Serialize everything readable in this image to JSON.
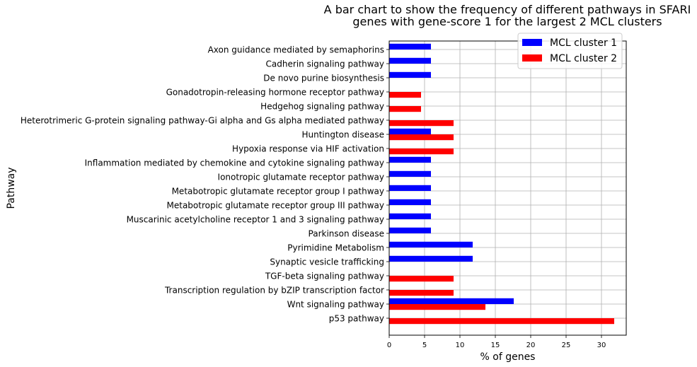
{
  "chart_data": {
    "type": "bar",
    "orientation": "horizontal",
    "title": "A bar chart to show the frequency of different pathways in SFARI\ngenes with gene-score 1 for the largest 2 MCL clusters",
    "xlabel": "% of genes",
    "ylabel": "Pathway",
    "xlim": [
      0,
      33.5
    ],
    "xticks": [
      0,
      5,
      10,
      15,
      20,
      25,
      30
    ],
    "grid": true,
    "legend_position": "top-right",
    "categories": [
      "Axon guidance mediated by semaphorins",
      "Cadherin signaling pathway",
      "De novo purine biosynthesis",
      "Gonadotropin-releasing hormone receptor pathway",
      "Hedgehog signaling pathway",
      "Heterotrimeric G-protein signaling pathway-Gi alpha and Gs alpha mediated pathway",
      "Huntington disease",
      "Hypoxia response via HIF activation",
      "Inflammation mediated by chemokine and cytokine signaling pathway",
      "Ionotropic glutamate receptor pathway",
      "Metabotropic glutamate receptor group I pathway",
      "Metabotropic glutamate receptor group III pathway",
      "Muscarinic acetylcholine receptor 1 and 3 signaling pathway",
      "Parkinson disease",
      "Pyrimidine Metabolism",
      "Synaptic vesicle trafficking",
      "TGF-beta signaling pathway",
      "Transcription regulation by bZIP transcription factor",
      "Wnt signaling pathway",
      "p53 pathway"
    ],
    "series": [
      {
        "name": "MCL cluster 1",
        "color": "#0000ff",
        "values": [
          5.9,
          5.9,
          5.9,
          0,
          0,
          0,
          5.9,
          0,
          5.9,
          5.9,
          5.9,
          5.9,
          5.9,
          5.9,
          11.8,
          11.8,
          0,
          0,
          17.6,
          0
        ]
      },
      {
        "name": "MCL cluster 2",
        "color": "#ff0000",
        "values": [
          0,
          0,
          0,
          4.5,
          4.5,
          9.1,
          9.1,
          9.1,
          0,
          0,
          0,
          0,
          0,
          0,
          0,
          0,
          9.1,
          9.1,
          13.6,
          31.8
        ]
      }
    ]
  }
}
